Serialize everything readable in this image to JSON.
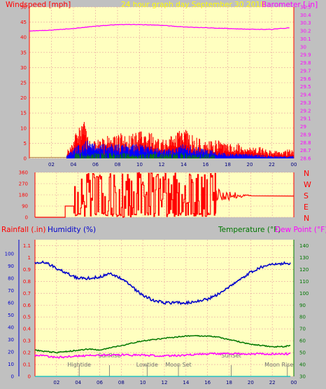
{
  "header": {
    "left_label": "Windspeed [mph]",
    "center_label": "24 hour graph day   September 30 2018",
    "right_label": "Barometer [.in]"
  },
  "bottom_header": {
    "rainfall_label": "Rainfall (.in)",
    "humidity_label": "Humidity (%)",
    "temperature_label": "Temperature (°F)",
    "dewpoint_label": "Dew Point (°F)"
  },
  "compass_letters": [
    "N",
    "W",
    "S",
    "E",
    "N"
  ],
  "colors": {
    "plot_bg": "#ffffc0",
    "frame_bg": "#c0c0c0",
    "wind": "#ff0000",
    "wind_avg": "#0000ff",
    "wind_low": "#008000",
    "barometer": "#ff00ff",
    "humidity": "#0000cc",
    "temperature": "#007700",
    "dewpoint": "#ff00ff",
    "rain": "#00bfbf",
    "grid": "#e8a0a0",
    "axis_red": "#ff0000",
    "title_yellow": "#ffff00"
  },
  "chart_data": [
    {
      "id": "wind_baro",
      "type": "line",
      "x_ticks": [
        "02",
        "04",
        "06",
        "08",
        "10",
        "12",
        "14",
        "16",
        "18",
        "20",
        "22",
        "00"
      ],
      "y_left_ticks": [
        "0",
        "5",
        "10",
        "15",
        "20",
        "25",
        "30",
        "35",
        "40",
        "45",
        "50"
      ],
      "y_left_range": [
        0,
        50
      ],
      "y_right_ticks": [
        "28.6",
        "28.7",
        "28.8",
        "28.9",
        "29",
        "29.1",
        "29.2",
        "29.3",
        "29.4",
        "29.5",
        "29.6",
        "29.7",
        "29.8",
        "29.9",
        "30",
        "30.1",
        "30.2",
        "30.3",
        "30.4",
        "30.5"
      ],
      "y_right_range": [
        28.6,
        30.5
      ],
      "series": [
        {
          "name": "Barometer",
          "axis": "right",
          "x": [
            0,
            2,
            4,
            6,
            8,
            10,
            12,
            14,
            16,
            18,
            20,
            22,
            23.7
          ],
          "values": [
            30.2,
            30.21,
            30.23,
            30.26,
            30.28,
            30.28,
            30.27,
            30.25,
            30.24,
            30.23,
            30.22,
            30.22,
            30.24
          ]
        },
        {
          "name": "Windspeed",
          "axis": "left",
          "x": [
            0,
            3.4,
            4,
            4.5,
            5,
            5.5,
            6,
            7,
            8,
            9,
            10,
            11,
            12,
            13,
            14,
            15,
            16,
            17,
            18,
            19,
            20,
            21,
            22,
            23,
            24
          ],
          "values": [
            0,
            2,
            6,
            8,
            10,
            6,
            5,
            6,
            7,
            6,
            8,
            7,
            6,
            7,
            8,
            6,
            5,
            5,
            4,
            4,
            3,
            3,
            2,
            2,
            3
          ]
        },
        {
          "name": "Avg wind",
          "axis": "left",
          "x": [
            0,
            3.4,
            4,
            5,
            6,
            8,
            10,
            12,
            14,
            16,
            18,
            20,
            22,
            24
          ],
          "values": [
            0,
            1,
            2,
            4,
            3,
            3,
            3,
            2,
            3,
            2,
            1,
            1,
            0.5,
            0.5
          ]
        }
      ]
    },
    {
      "id": "wind_dir",
      "type": "line",
      "y_ticks": [
        "0",
        "90",
        "180",
        "270",
        "360"
      ],
      "y_range": [
        0,
        360
      ],
      "series": [
        {
          "name": "Wind direction",
          "x": [
            0,
            2.8,
            3,
            3.6,
            24
          ],
          "values": [
            0,
            0,
            90,
            90,
            170
          ]
        }
      ]
    },
    {
      "id": "humidity_temp",
      "type": "line",
      "x_ticks": [
        "02",
        "04",
        "06",
        "08",
        "10",
        "12",
        "14",
        "16",
        "18",
        "20",
        "22",
        "00"
      ],
      "y_left_ticks": [
        "0",
        "0.1",
        "0.2",
        "0.3",
        "0.4",
        "0.5",
        "0.6",
        "0.7",
        "0.8",
        "0.9",
        "1",
        "1.1"
      ],
      "y_left_range": [
        0,
        1.15
      ],
      "y_humidity_ticks": [
        "0",
        "10",
        "20",
        "30",
        "40",
        "50",
        "60",
        "70",
        "80",
        "90",
        "100"
      ],
      "y_humidity_range": [
        0,
        100
      ],
      "y_right_ticks": [
        "30",
        "40",
        "50",
        "60",
        "70",
        "80",
        "90",
        "100",
        "110",
        "120",
        "130",
        "140"
      ],
      "y_right_range": [
        30,
        145
      ],
      "series": [
        {
          "name": "Humidity",
          "axis": "humidity",
          "x": [
            0,
            1,
            2,
            3,
            4,
            5,
            6,
            7,
            8,
            9,
            10,
            11,
            12,
            13,
            14,
            15,
            16,
            17,
            18,
            19,
            20,
            21,
            22,
            23,
            23.7
          ],
          "values": [
            93,
            93,
            88,
            84,
            80,
            80,
            81,
            84,
            80,
            73,
            66,
            62,
            60,
            60,
            60,
            61,
            63,
            67,
            73,
            79,
            85,
            89,
            91,
            92,
            92
          ]
        },
        {
          "name": "Temperature",
          "axis": "right",
          "x": [
            0,
            1,
            2,
            3,
            4,
            5,
            6,
            7,
            8,
            9,
            10,
            11,
            12,
            13,
            14,
            15,
            16,
            17,
            18,
            19,
            20,
            21,
            22,
            23,
            23.7
          ],
          "values": [
            52,
            51,
            50,
            51,
            52,
            53,
            52,
            54,
            56,
            58,
            60,
            61,
            62,
            63,
            64,
            64,
            64,
            63,
            61,
            59,
            57,
            56,
            55,
            55,
            56
          ]
        },
        {
          "name": "Dew Point",
          "axis": "right",
          "x": [
            0,
            2,
            4,
            6,
            8,
            10,
            12,
            14,
            16,
            18,
            20,
            22,
            23.7
          ],
          "values": [
            48,
            46,
            47,
            48,
            48,
            48,
            47,
            48,
            49,
            49,
            49,
            49,
            49
          ]
        },
        {
          "name": "Rainfall",
          "axis": "left",
          "x": [
            0,
            23.7
          ],
          "values": [
            0,
            0
          ]
        }
      ],
      "annotations": [
        {
          "label": "Hightide",
          "x": 4.1
        },
        {
          "label": "SunRise",
          "x": 6.9
        },
        {
          "label": "Lowtide",
          "x": 10.4
        },
        {
          "label": "Moon Set",
          "x": 13.3
        },
        {
          "label": "SunSet",
          "x": 18.2
        },
        {
          "label": "Moon Rise",
          "x": 23.4
        }
      ]
    }
  ]
}
